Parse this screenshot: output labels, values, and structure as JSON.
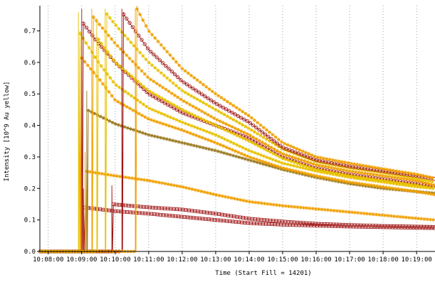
{
  "chart_data": {
    "type": "line",
    "title": "",
    "xlabel": "Time (Start Fill = 14201)",
    "ylabel": "Intensity [10^9 Au yellow]",
    "x_ticks": [
      "10:08:00",
      "10:09:00",
      "10:10:00",
      "10:11:00",
      "10:12:00",
      "10:13:00",
      "10:14:00",
      "10:15:00",
      "10:16:00",
      "10:17:00",
      "10:18:00",
      "10:19:00"
    ],
    "y_ticks": [
      0.0,
      0.1,
      0.2,
      0.3,
      0.4,
      0.5,
      0.6,
      0.7
    ],
    "y_tick_labels": [
      "0.0",
      "0.1",
      "0.2",
      "0.3",
      "0.4",
      "0.5",
      "0.6",
      "0.7"
    ],
    "xlim_minutes": [
      -0.25,
      11.55
    ],
    "ylim": [
      0,
      0.78
    ],
    "x_unit": "minutes after 10:08:00",
    "grid": "vertical dotted",
    "legend": "none",
    "colors": {
      "orange": "#f0a000",
      "yellow": "#e8c200",
      "darkred": "#a01818",
      "olive": "#9a7a20"
    },
    "series": [
      {
        "color": "darkred",
        "marker": "square",
        "start": 1.05,
        "points": [
          [
            1.05,
            0.14
          ],
          [
            2,
            0.128
          ],
          [
            3,
            0.12
          ],
          [
            4,
            0.11
          ],
          [
            5,
            0.1
          ],
          [
            6,
            0.09
          ],
          [
            7,
            0.085
          ],
          [
            8,
            0.082
          ],
          [
            9,
            0.079
          ],
          [
            10,
            0.077
          ],
          [
            11,
            0.075
          ],
          [
            11.55,
            0.074
          ]
        ]
      },
      {
        "color": "darkred",
        "marker": "square",
        "start": 1.9,
        "points": [
          [
            1.9,
            0.15
          ],
          [
            3,
            0.14
          ],
          [
            4,
            0.133
          ],
          [
            5,
            0.12
          ],
          [
            6,
            0.104
          ],
          [
            7,
            0.095
          ],
          [
            8,
            0.088
          ],
          [
            9,
            0.084
          ],
          [
            10,
            0.081
          ],
          [
            11,
            0.079
          ],
          [
            11.55,
            0.078
          ]
        ]
      },
      {
        "color": "orange",
        "marker": "star",
        "start": 1.1,
        "points": [
          [
            1.1,
            0.255
          ],
          [
            2,
            0.24
          ],
          [
            3,
            0.225
          ],
          [
            4,
            0.205
          ],
          [
            5,
            0.18
          ],
          [
            6,
            0.158
          ],
          [
            7,
            0.145
          ],
          [
            8,
            0.135
          ],
          [
            9,
            0.125
          ],
          [
            10,
            0.115
          ],
          [
            11,
            0.105
          ],
          [
            11.55,
            0.1
          ]
        ]
      },
      {
        "color": "olive",
        "marker": "star",
        "start": 1.15,
        "points": [
          [
            1.15,
            0.45
          ],
          [
            2,
            0.405
          ],
          [
            3,
            0.37
          ],
          [
            4,
            0.345
          ],
          [
            5,
            0.32
          ],
          [
            6,
            0.29
          ],
          [
            7,
            0.26
          ],
          [
            8,
            0.235
          ],
          [
            9,
            0.215
          ],
          [
            10,
            0.2
          ],
          [
            11,
            0.19
          ],
          [
            11.55,
            0.185
          ]
        ]
      },
      {
        "color": "orange",
        "marker": "star",
        "start": 0.95,
        "points": [
          [
            0.95,
            0.62
          ],
          [
            1.5,
            0.55
          ],
          [
            2,
            0.48
          ],
          [
            3,
            0.42
          ],
          [
            4,
            0.385
          ],
          [
            5,
            0.345
          ],
          [
            6,
            0.3
          ],
          [
            7,
            0.265
          ],
          [
            8,
            0.24
          ],
          [
            9,
            0.22
          ],
          [
            10,
            0.205
          ],
          [
            11,
            0.19
          ],
          [
            11.55,
            0.18
          ]
        ]
      },
      {
        "color": "yellow",
        "marker": "star",
        "start": 0.9,
        "points": [
          [
            0.9,
            0.7
          ],
          [
            1.5,
            0.6
          ],
          [
            2,
            0.53
          ],
          [
            3,
            0.455
          ],
          [
            4,
            0.41
          ],
          [
            5,
            0.37
          ],
          [
            6,
            0.32
          ],
          [
            7,
            0.28
          ],
          [
            8,
            0.255
          ],
          [
            9,
            0.235
          ],
          [
            10,
            0.22
          ],
          [
            11,
            0.205
          ],
          [
            11.55,
            0.2
          ]
        ]
      },
      {
        "color": "darkred",
        "marker": "circle",
        "start": 1.0,
        "points": [
          [
            1.0,
            0.73
          ],
          [
            1.5,
            0.66
          ],
          [
            2,
            0.6
          ],
          [
            3,
            0.5
          ],
          [
            4,
            0.44
          ],
          [
            5,
            0.4
          ],
          [
            6,
            0.36
          ],
          [
            7,
            0.3
          ],
          [
            8,
            0.265
          ],
          [
            9,
            0.245
          ],
          [
            10,
            0.23
          ],
          [
            11,
            0.215
          ],
          [
            11.55,
            0.205
          ]
        ]
      },
      {
        "color": "orange",
        "marker": "star",
        "start": 1.3,
        "points": [
          [
            1.3,
            0.75
          ],
          [
            2,
            0.66
          ],
          [
            3,
            0.55
          ],
          [
            4,
            0.48
          ],
          [
            5,
            0.42
          ],
          [
            6,
            0.37
          ],
          [
            7,
            0.31
          ],
          [
            8,
            0.275
          ],
          [
            9,
            0.255
          ],
          [
            10,
            0.24
          ],
          [
            11,
            0.225
          ],
          [
            11.55,
            0.21
          ]
        ]
      },
      {
        "color": "yellow",
        "marker": "star",
        "start": 1.7,
        "points": [
          [
            1.7,
            0.76
          ],
          [
            2,
            0.72
          ],
          [
            3,
            0.6
          ],
          [
            4,
            0.51
          ],
          [
            5,
            0.45
          ],
          [
            6,
            0.39
          ],
          [
            7,
            0.325
          ],
          [
            8,
            0.285
          ],
          [
            9,
            0.265
          ],
          [
            10,
            0.25
          ],
          [
            11,
            0.232
          ],
          [
            11.55,
            0.22
          ]
        ]
      },
      {
        "color": "darkred",
        "marker": "circle",
        "start": 2.2,
        "points": [
          [
            2.2,
            0.76
          ],
          [
            3,
            0.64
          ],
          [
            4,
            0.54
          ],
          [
            5,
            0.47
          ],
          [
            6,
            0.41
          ],
          [
            7,
            0.33
          ],
          [
            8,
            0.29
          ],
          [
            9,
            0.27
          ],
          [
            10,
            0.255
          ],
          [
            11,
            0.24
          ],
          [
            11.55,
            0.23
          ]
        ]
      },
      {
        "color": "orange",
        "marker": "star",
        "start": 2.6,
        "points": [
          [
            2.6,
            0.78
          ],
          [
            3,
            0.7
          ],
          [
            4,
            0.58
          ],
          [
            5,
            0.5
          ],
          [
            6,
            0.43
          ],
          [
            7,
            0.345
          ],
          [
            8,
            0.3
          ],
          [
            9,
            0.28
          ],
          [
            10,
            0.262
          ],
          [
            11,
            0.245
          ],
          [
            11.55,
            0.232
          ]
        ]
      },
      {
        "color": "yellow",
        "marker": "star",
        "start": 1.45,
        "points": [
          [
            1.45,
            0.68
          ],
          [
            2,
            0.6
          ],
          [
            3,
            0.51
          ],
          [
            4,
            0.45
          ],
          [
            5,
            0.4
          ],
          [
            6,
            0.35
          ],
          [
            7,
            0.295
          ],
          [
            8,
            0.26
          ],
          [
            9,
            0.24
          ],
          [
            10,
            0.225
          ],
          [
            11,
            0.21
          ],
          [
            11.55,
            0.2
          ]
        ]
      }
    ]
  }
}
